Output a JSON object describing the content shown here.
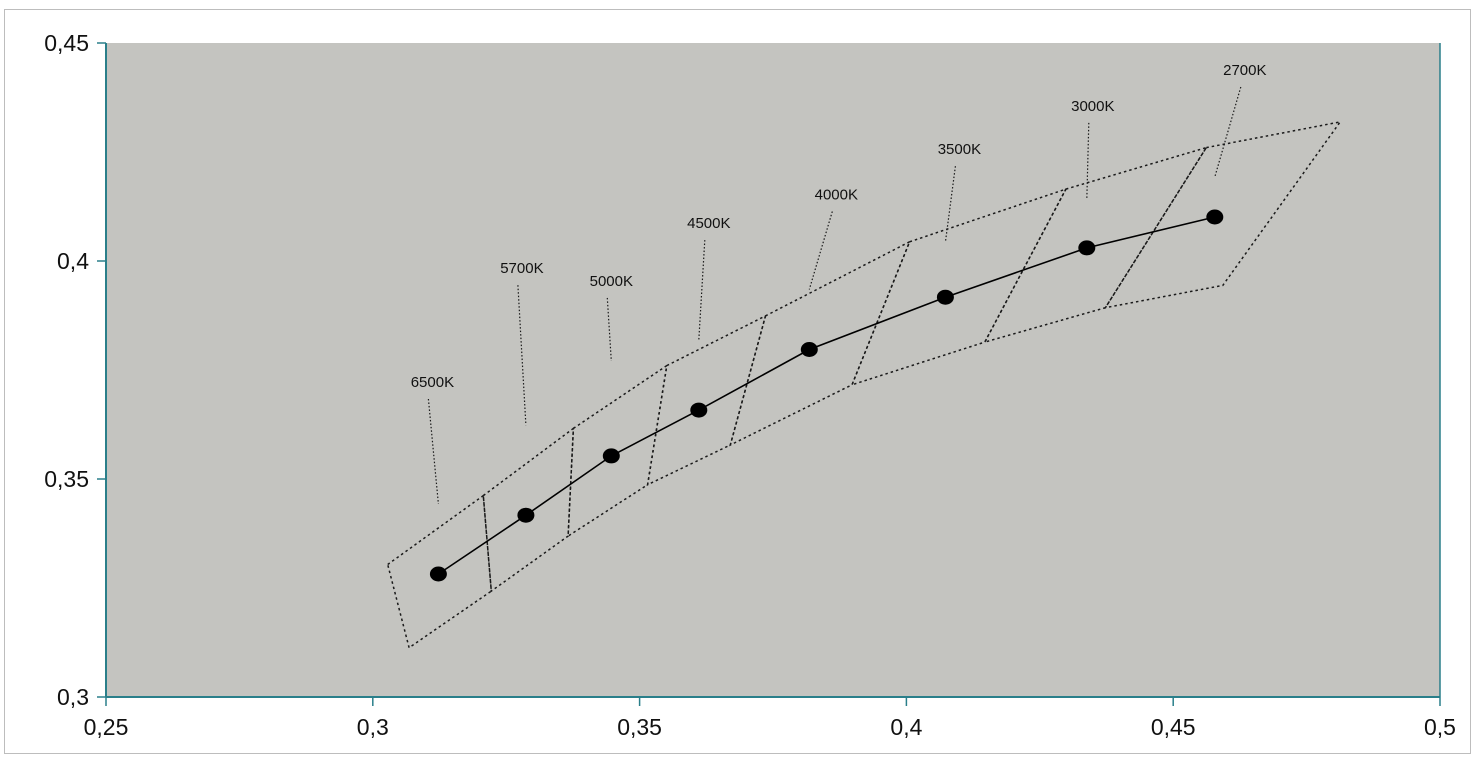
{
  "chart_data": {
    "type": "scatter",
    "title": "",
    "xlabel": "",
    "ylabel": "",
    "xlim": [
      0.25,
      0.5
    ],
    "ylim": [
      0.3,
      0.45
    ],
    "x_ticks": [
      0.25,
      0.3,
      0.35,
      0.4,
      0.45,
      0.5
    ],
    "y_ticks": [
      0.3,
      0.35,
      0.4,
      0.45
    ],
    "x_tick_labels": [
      "0,25",
      "0,3",
      "0,35",
      "0,4",
      "0,45",
      "0,5"
    ],
    "y_tick_labels": [
      "0,3",
      "0,35",
      "0,4",
      "0,45"
    ],
    "grid": false,
    "plot_background": "#c4c4c0",
    "axis_color": "#2a7f8a",
    "series": [
      {
        "points": [
          {
            "label": "6500K",
            "x": 0.3123,
            "y": 0.3282
          },
          {
            "label": "5700K",
            "x": 0.3287,
            "y": 0.3417
          },
          {
            "label": "5000K",
            "x": 0.3447,
            "y": 0.3553
          },
          {
            "label": "4500K",
            "x": 0.3611,
            "y": 0.3658
          },
          {
            "label": "4000K",
            "x": 0.3818,
            "y": 0.3797
          },
          {
            "label": "3500K",
            "x": 0.4073,
            "y": 0.3917
          },
          {
            "label": "3000K",
            "x": 0.4338,
            "y": 0.403
          },
          {
            "label": "2700K",
            "x": 0.4578,
            "y": 0.4101
          }
        ]
      }
    ],
    "quadrangles": [
      {
        "label": "6500K",
        "corners": [
          [
            0.3028,
            0.3304
          ],
          [
            0.3207,
            0.3462
          ],
          [
            0.3222,
            0.3243
          ],
          [
            0.3068,
            0.3113
          ]
        ]
      },
      {
        "label": "5700K",
        "corners": [
          [
            0.3207,
            0.3462
          ],
          [
            0.3376,
            0.3616
          ],
          [
            0.3366,
            0.3369
          ],
          [
            0.3222,
            0.3243
          ]
        ]
      },
      {
        "label": "5000K",
        "corners": [
          [
            0.3376,
            0.3616
          ],
          [
            0.3551,
            0.376
          ],
          [
            0.3515,
            0.3487
          ],
          [
            0.3366,
            0.3369
          ]
        ]
      },
      {
        "label": "4500K",
        "corners": [
          [
            0.3551,
            0.376
          ],
          [
            0.3736,
            0.3874
          ],
          [
            0.367,
            0.3578
          ],
          [
            0.3515,
            0.3487
          ]
        ]
      },
      {
        "label": "4000K",
        "corners": [
          [
            0.3736,
            0.3874
          ],
          [
            0.4006,
            0.4044
          ],
          [
            0.3898,
            0.3716
          ],
          [
            0.367,
            0.3578
          ]
        ]
      },
      {
        "label": "3500K",
        "corners": [
          [
            0.4006,
            0.4044
          ],
          [
            0.4299,
            0.4165
          ],
          [
            0.4147,
            0.3814
          ],
          [
            0.3898,
            0.3716
          ]
        ]
      },
      {
        "label": "3000K",
        "corners": [
          [
            0.4299,
            0.4165
          ],
          [
            0.4562,
            0.426
          ],
          [
            0.4373,
            0.3893
          ],
          [
            0.4147,
            0.3814
          ]
        ]
      },
      {
        "label": "2700K",
        "corners": [
          [
            0.4562,
            0.426
          ],
          [
            0.4813,
            0.4319
          ],
          [
            0.4593,
            0.3944
          ],
          [
            0.4373,
            0.3893
          ]
        ]
      }
    ]
  }
}
